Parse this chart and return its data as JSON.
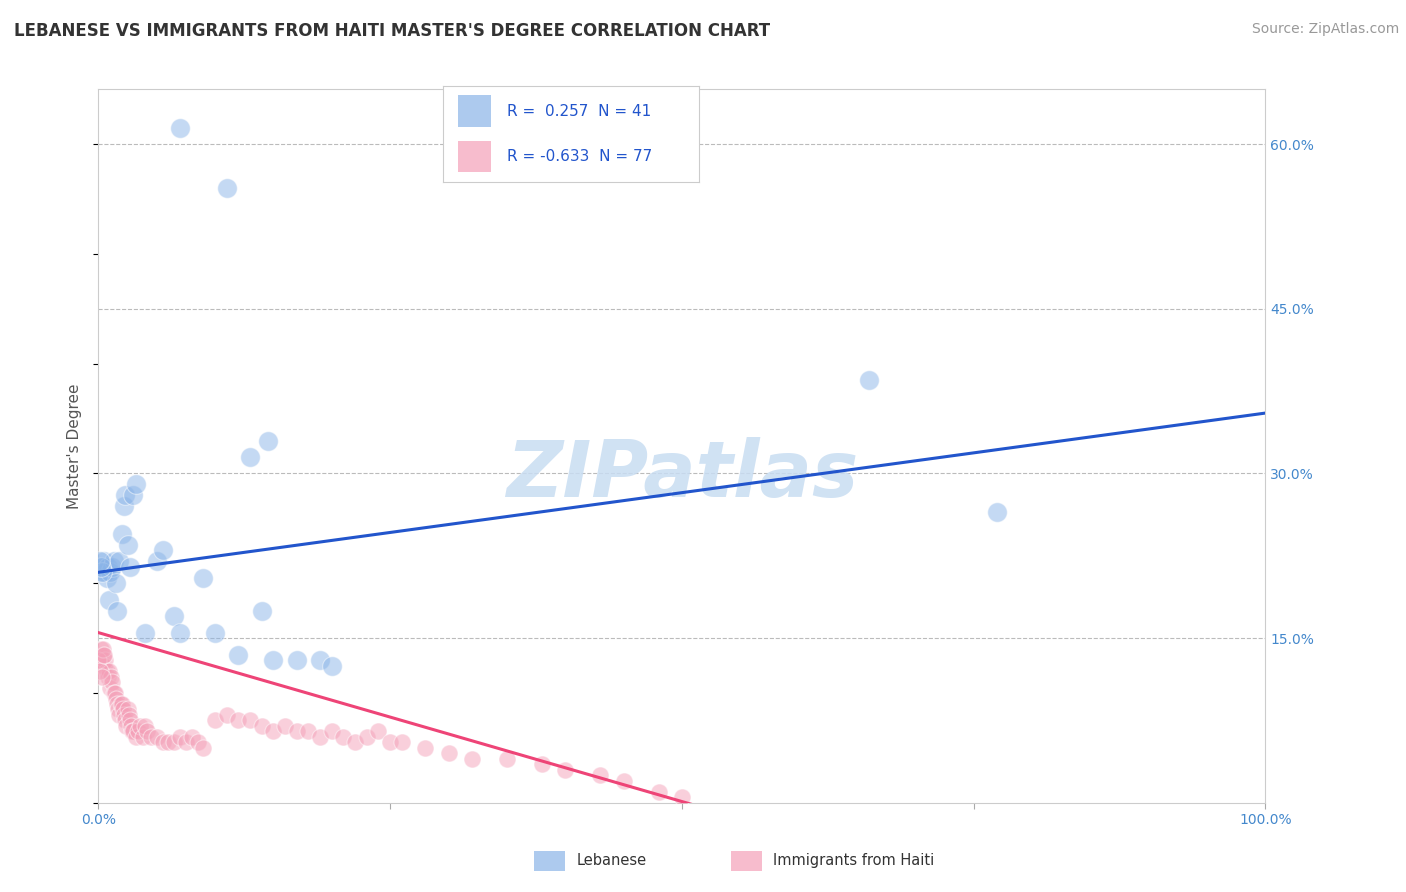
{
  "title": "LEBANESE VS IMMIGRANTS FROM HAITI MASTER'S DEGREE CORRELATION CHART",
  "source": "Source: ZipAtlas.com",
  "ylabel": "Master's Degree",
  "xlim": [
    0,
    1.0
  ],
  "ylim": [
    0,
    0.65
  ],
  "ytick_positions": [
    0.0,
    0.15,
    0.3,
    0.45,
    0.6
  ],
  "ytick_labels": [
    "",
    "15.0%",
    "30.0%",
    "45.0%",
    "60.0%"
  ],
  "color_blue": "#8AB4E8",
  "color_pink": "#F4A0B8",
  "trendline_blue": [
    0.0,
    0.21,
    1.0,
    0.355
  ],
  "trendline_pink": [
    0.0,
    0.155,
    0.52,
    -0.005
  ],
  "watermark": "ZIPatlas",
  "blue_scatter": [
    [
      0.004,
      0.215
    ],
    [
      0.005,
      0.22
    ],
    [
      0.006,
      0.21
    ],
    [
      0.007,
      0.205
    ],
    [
      0.008,
      0.215
    ],
    [
      0.009,
      0.185
    ],
    [
      0.01,
      0.21
    ],
    [
      0.012,
      0.215
    ],
    [
      0.013,
      0.22
    ],
    [
      0.015,
      0.2
    ],
    [
      0.016,
      0.175
    ],
    [
      0.018,
      0.22
    ],
    [
      0.02,
      0.245
    ],
    [
      0.022,
      0.27
    ],
    [
      0.023,
      0.28
    ],
    [
      0.025,
      0.235
    ],
    [
      0.027,
      0.215
    ],
    [
      0.03,
      0.28
    ],
    [
      0.032,
      0.29
    ],
    [
      0.04,
      0.155
    ],
    [
      0.05,
      0.22
    ],
    [
      0.055,
      0.23
    ],
    [
      0.065,
      0.17
    ],
    [
      0.07,
      0.155
    ],
    [
      0.09,
      0.205
    ],
    [
      0.1,
      0.155
    ],
    [
      0.12,
      0.135
    ],
    [
      0.14,
      0.175
    ],
    [
      0.15,
      0.13
    ],
    [
      0.17,
      0.13
    ],
    [
      0.19,
      0.13
    ],
    [
      0.2,
      0.125
    ],
    [
      0.13,
      0.315
    ],
    [
      0.145,
      0.33
    ],
    [
      0.07,
      0.615
    ],
    [
      0.11,
      0.56
    ],
    [
      0.66,
      0.385
    ],
    [
      0.77,
      0.265
    ],
    [
      0.003,
      0.21
    ],
    [
      0.002,
      0.215
    ],
    [
      0.001,
      0.22
    ]
  ],
  "pink_scatter": [
    [
      0.001,
      0.135
    ],
    [
      0.002,
      0.14
    ],
    [
      0.003,
      0.125
    ],
    [
      0.004,
      0.135
    ],
    [
      0.005,
      0.125
    ],
    [
      0.006,
      0.13
    ],
    [
      0.007,
      0.12
    ],
    [
      0.008,
      0.115
    ],
    [
      0.009,
      0.12
    ],
    [
      0.01,
      0.105
    ],
    [
      0.011,
      0.115
    ],
    [
      0.012,
      0.11
    ],
    [
      0.013,
      0.1
    ],
    [
      0.014,
      0.1
    ],
    [
      0.015,
      0.095
    ],
    [
      0.016,
      0.09
    ],
    [
      0.017,
      0.085
    ],
    [
      0.018,
      0.08
    ],
    [
      0.019,
      0.09
    ],
    [
      0.02,
      0.09
    ],
    [
      0.021,
      0.085
    ],
    [
      0.022,
      0.08
    ],
    [
      0.023,
      0.075
    ],
    [
      0.024,
      0.07
    ],
    [
      0.025,
      0.085
    ],
    [
      0.026,
      0.08
    ],
    [
      0.027,
      0.075
    ],
    [
      0.028,
      0.07
    ],
    [
      0.029,
      0.065
    ],
    [
      0.03,
      0.065
    ],
    [
      0.032,
      0.06
    ],
    [
      0.034,
      0.065
    ],
    [
      0.036,
      0.07
    ],
    [
      0.038,
      0.06
    ],
    [
      0.04,
      0.07
    ],
    [
      0.042,
      0.065
    ],
    [
      0.045,
      0.06
    ],
    [
      0.05,
      0.06
    ],
    [
      0.055,
      0.055
    ],
    [
      0.06,
      0.055
    ],
    [
      0.065,
      0.055
    ],
    [
      0.07,
      0.06
    ],
    [
      0.075,
      0.055
    ],
    [
      0.08,
      0.06
    ],
    [
      0.085,
      0.055
    ],
    [
      0.09,
      0.05
    ],
    [
      0.1,
      0.075
    ],
    [
      0.11,
      0.08
    ],
    [
      0.12,
      0.075
    ],
    [
      0.13,
      0.075
    ],
    [
      0.14,
      0.07
    ],
    [
      0.15,
      0.065
    ],
    [
      0.16,
      0.07
    ],
    [
      0.17,
      0.065
    ],
    [
      0.18,
      0.065
    ],
    [
      0.19,
      0.06
    ],
    [
      0.2,
      0.065
    ],
    [
      0.21,
      0.06
    ],
    [
      0.22,
      0.055
    ],
    [
      0.23,
      0.06
    ],
    [
      0.24,
      0.065
    ],
    [
      0.25,
      0.055
    ],
    [
      0.26,
      0.055
    ],
    [
      0.28,
      0.05
    ],
    [
      0.3,
      0.045
    ],
    [
      0.32,
      0.04
    ],
    [
      0.35,
      0.04
    ],
    [
      0.38,
      0.035
    ],
    [
      0.4,
      0.03
    ],
    [
      0.43,
      0.025
    ],
    [
      0.45,
      0.02
    ],
    [
      0.48,
      0.01
    ],
    [
      0.5,
      0.005
    ],
    [
      0.0,
      0.13
    ],
    [
      0.001,
      0.12
    ],
    [
      0.003,
      0.115
    ],
    [
      0.004,
      0.14
    ],
    [
      0.005,
      0.135
    ]
  ]
}
